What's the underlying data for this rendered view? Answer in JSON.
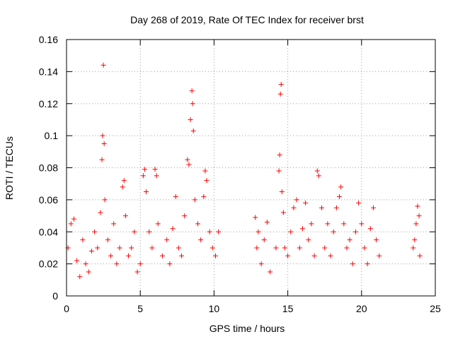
{
  "chart_data": {
    "type": "scatter",
    "title": "Day 268 of 2019, Rate Of TEC Index for receiver brst",
    "xlabel": "GPS time / hours",
    "ylabel": "ROTI / TECUs",
    "xlim": [
      0,
      25
    ],
    "ylim": [
      0,
      0.16
    ],
    "x_ticks": [
      0,
      5,
      10,
      15,
      20,
      25
    ],
    "x_tick_labels": [
      "0",
      "5",
      "10",
      "15",
      "20",
      "25"
    ],
    "y_ticks": [
      0,
      0.02,
      0.04,
      0.06,
      0.08,
      0.1,
      0.12,
      0.14,
      0.16
    ],
    "y_tick_labels": [
      "0",
      "0.02",
      "0.04",
      "0.06",
      "0.08",
      "0.1",
      "0.12",
      "0.14",
      "0.16"
    ],
    "grid": true,
    "marker": "+",
    "marker_color": "#ff0000",
    "series": [
      {
        "name": "",
        "points": [
          [
            0.1,
            0.03
          ],
          [
            0.3,
            0.045
          ],
          [
            0.5,
            0.048
          ],
          [
            0.7,
            0.022
          ],
          [
            0.9,
            0.012
          ],
          [
            1.1,
            0.035
          ],
          [
            1.3,
            0.02
          ],
          [
            1.5,
            0.015
          ],
          [
            1.7,
            0.028
          ],
          [
            1.9,
            0.04
          ],
          [
            2.1,
            0.03
          ],
          [
            2.3,
            0.052
          ],
          [
            2.4,
            0.085
          ],
          [
            2.45,
            0.1
          ],
          [
            2.5,
            0.144
          ],
          [
            2.55,
            0.095
          ],
          [
            2.6,
            0.06
          ],
          [
            2.8,
            0.035
          ],
          [
            3.0,
            0.025
          ],
          [
            3.2,
            0.045
          ],
          [
            3.4,
            0.02
          ],
          [
            3.6,
            0.03
          ],
          [
            3.8,
            0.068
          ],
          [
            3.9,
            0.072
          ],
          [
            4.0,
            0.05
          ],
          [
            4.2,
            0.025
          ],
          [
            4.4,
            0.03
          ],
          [
            4.6,
            0.04
          ],
          [
            4.8,
            0.015
          ],
          [
            5.0,
            0.02
          ],
          [
            5.2,
            0.075
          ],
          [
            5.3,
            0.079
          ],
          [
            5.4,
            0.065
          ],
          [
            5.6,
            0.04
          ],
          [
            5.8,
            0.03
          ],
          [
            6.0,
            0.079
          ],
          [
            6.1,
            0.075
          ],
          [
            6.2,
            0.045
          ],
          [
            6.5,
            0.025
          ],
          [
            6.8,
            0.035
          ],
          [
            7.0,
            0.02
          ],
          [
            7.2,
            0.042
          ],
          [
            7.4,
            0.062
          ],
          [
            7.6,
            0.03
          ],
          [
            7.8,
            0.025
          ],
          [
            8.0,
            0.05
          ],
          [
            8.2,
            0.085
          ],
          [
            8.3,
            0.082
          ],
          [
            8.4,
            0.11
          ],
          [
            8.5,
            0.128
          ],
          [
            8.55,
            0.12
          ],
          [
            8.6,
            0.103
          ],
          [
            8.7,
            0.06
          ],
          [
            8.9,
            0.045
          ],
          [
            9.1,
            0.035
          ],
          [
            9.3,
            0.062
          ],
          [
            9.4,
            0.078
          ],
          [
            9.5,
            0.072
          ],
          [
            9.7,
            0.04
          ],
          [
            9.9,
            0.03
          ],
          [
            10.1,
            0.025
          ],
          [
            10.3,
            0.04
          ],
          [
            12.8,
            0.049
          ],
          [
            12.9,
            0.03
          ],
          [
            13.0,
            0.04
          ],
          [
            13.2,
            0.02
          ],
          [
            13.4,
            0.035
          ],
          [
            13.6,
            0.046
          ],
          [
            13.8,
            0.015
          ],
          [
            14.2,
            0.03
          ],
          [
            14.4,
            0.078
          ],
          [
            14.45,
            0.088
          ],
          [
            14.5,
            0.126
          ],
          [
            14.55,
            0.132
          ],
          [
            14.6,
            0.065
          ],
          [
            14.7,
            0.052
          ],
          [
            14.8,
            0.03
          ],
          [
            15.0,
            0.025
          ],
          [
            15.2,
            0.04
          ],
          [
            15.4,
            0.055
          ],
          [
            15.6,
            0.06
          ],
          [
            15.8,
            0.03
          ],
          [
            16.0,
            0.042
          ],
          [
            16.2,
            0.058
          ],
          [
            16.4,
            0.035
          ],
          [
            16.6,
            0.045
          ],
          [
            16.8,
            0.025
          ],
          [
            17.0,
            0.078
          ],
          [
            17.1,
            0.075
          ],
          [
            17.3,
            0.055
          ],
          [
            17.5,
            0.03
          ],
          [
            17.7,
            0.045
          ],
          [
            17.9,
            0.025
          ],
          [
            18.1,
            0.04
          ],
          [
            18.3,
            0.055
          ],
          [
            18.5,
            0.062
          ],
          [
            18.6,
            0.068
          ],
          [
            18.8,
            0.045
          ],
          [
            19.0,
            0.03
          ],
          [
            19.2,
            0.035
          ],
          [
            19.4,
            0.02
          ],
          [
            19.6,
            0.04
          ],
          [
            19.8,
            0.058
          ],
          [
            20.0,
            0.045
          ],
          [
            20.2,
            0.03
          ],
          [
            20.4,
            0.02
          ],
          [
            20.6,
            0.042
          ],
          [
            20.8,
            0.055
          ],
          [
            21.0,
            0.035
          ],
          [
            21.2,
            0.025
          ],
          [
            23.5,
            0.03
          ],
          [
            23.6,
            0.035
          ],
          [
            23.7,
            0.045
          ],
          [
            23.8,
            0.056
          ],
          [
            23.9,
            0.05
          ],
          [
            23.95,
            0.025
          ]
        ]
      }
    ]
  }
}
